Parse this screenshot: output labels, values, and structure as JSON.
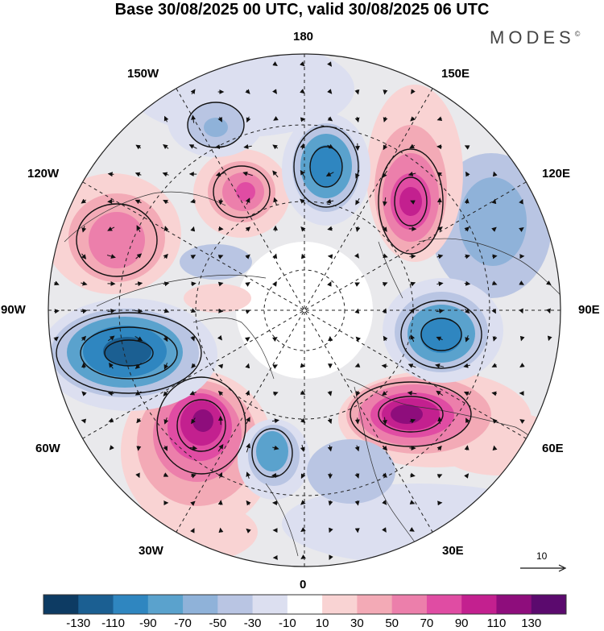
{
  "title": "Base 30/08/2025 00 UTC, valid 30/08/2025 06 UTC",
  "brand": {
    "name": "MODES",
    "mark": "©"
  },
  "meridian_labels": {
    "m180": "180",
    "m150w": "150W",
    "m150e": "150E",
    "m120w": "120W",
    "m120e": "120E",
    "m90w": "90W",
    "m90e": "90E",
    "m60w": "60W",
    "m60e": "60E",
    "m30w": "30W",
    "m30e": "30E",
    "m0": "0"
  },
  "vector_scale": {
    "label": "10"
  },
  "colorbar": {
    "ticks": [
      "-130",
      "-110",
      "-90",
      "-70",
      "-50",
      "-30",
      "-10",
      "10",
      "30",
      "50",
      "70",
      "90",
      "110",
      "130"
    ],
    "colors": [
      "#0d3b63",
      "#1b5f92",
      "#2f86c0",
      "#5aa2cd",
      "#8fb2d9",
      "#b9c5e3",
      "#dcdff0",
      "#ffffff",
      "#f9d3d3",
      "#f3aab6",
      "#ec7fab",
      "#e04ca3",
      "#c3208f",
      "#8e0d7c",
      "#5b0a6e"
    ]
  },
  "map_data": {
    "projection": "north-polar-stereographic",
    "field": "anomaly",
    "units_range": [
      -130,
      130
    ],
    "features": [
      {
        "name": "anomaly-pos-north-atlantic",
        "value": 120
      },
      {
        "name": "anomaly-pos-barents-scandinavia",
        "value": 120
      },
      {
        "name": "anomaly-pos-east-siberia",
        "value": 100
      },
      {
        "name": "anomaly-pos-alaska",
        "value": 80
      },
      {
        "name": "anomaly-pos-canada-west",
        "value": 70
      },
      {
        "name": "anomaly-neg-labrador",
        "value": -120
      },
      {
        "name": "anomaly-neg-west-siberia",
        "value": -100
      },
      {
        "name": "anomaly-neg-bering",
        "value": -100
      },
      {
        "name": "anomaly-neg-europe-west",
        "value": -90
      },
      {
        "name": "anomaly-neg-pacific",
        "value": -60
      },
      {
        "name": "anomaly-neg-yakutia",
        "value": -40
      }
    ]
  }
}
